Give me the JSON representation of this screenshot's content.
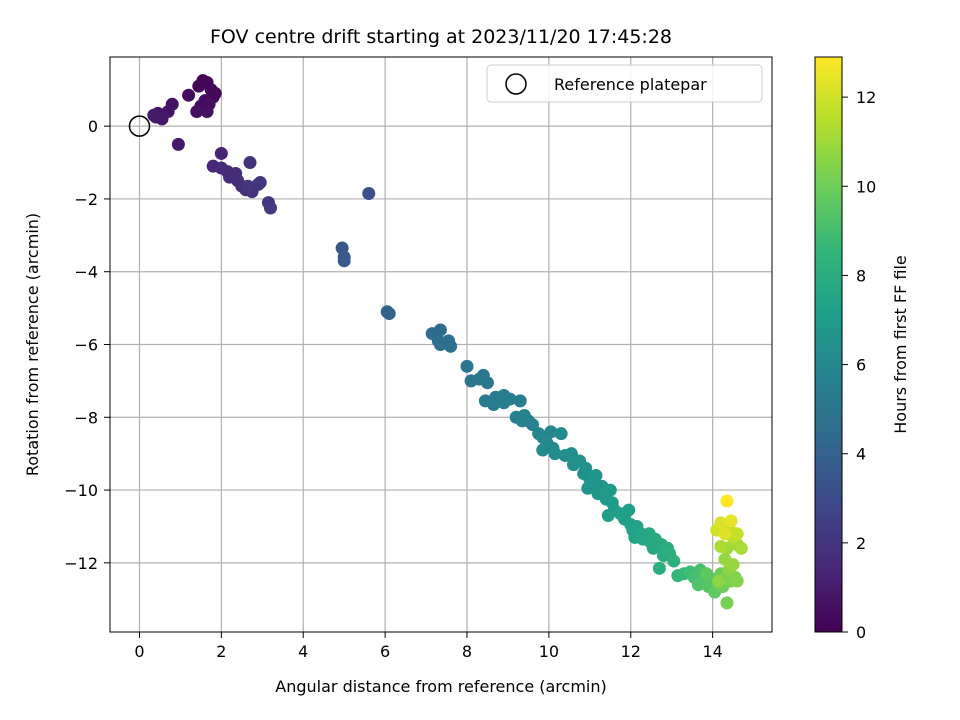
{
  "chart_data": {
    "type": "scatter",
    "title": "FOV centre drift starting at 2023/11/20 17:45:28",
    "xlabel": "Angular distance from reference (arcmin)",
    "ylabel": "Rotation from reference (arcmin)",
    "xlim": [
      -0.72,
      15.45
    ],
    "ylim": [
      -13.9,
      1.9
    ],
    "x_ticks": [
      0,
      2,
      4,
      6,
      8,
      10,
      12,
      14
    ],
    "y_ticks": [
      0,
      -2,
      -4,
      -6,
      -8,
      -10,
      -12
    ],
    "grid": true,
    "legend": {
      "position": "top-right",
      "entries": [
        "Reference platepar"
      ]
    },
    "reference_point": {
      "x": 0,
      "y": 0
    },
    "colorbar": {
      "label": "Hours from first FF file",
      "colormap": "viridis",
      "range": [
        0,
        12.9
      ],
      "ticks": [
        0,
        2,
        4,
        6,
        8,
        10,
        12
      ]
    },
    "colors": [
      "#440154",
      "#482878",
      "#3e4989",
      "#31688e",
      "#26828e",
      "#1f9e89",
      "#35b779",
      "#6ece58",
      "#b5de2b",
      "#fde725"
    ],
    "points": [
      [
        1.55,
        1.25,
        0.05
      ],
      [
        1.65,
        1.2,
        0.1
      ],
      [
        1.45,
        1.1,
        0.15
      ],
      [
        1.75,
        1.0,
        0.2
      ],
      [
        1.85,
        0.9,
        0.25
      ],
      [
        1.8,
        0.8,
        0.3
      ],
      [
        1.2,
        0.85,
        0.35
      ],
      [
        1.6,
        0.7,
        0.4
      ],
      [
        1.5,
        0.55,
        0.45
      ],
      [
        1.7,
        0.6,
        0.5
      ],
      [
        1.4,
        0.4,
        0.55
      ],
      [
        1.65,
        0.4,
        0.6
      ],
      [
        0.8,
        0.6,
        0.65
      ],
      [
        0.7,
        0.4,
        0.7
      ],
      [
        0.45,
        0.35,
        0.75
      ],
      [
        0.55,
        0.2,
        0.8
      ],
      [
        0.4,
        0.25,
        0.85
      ],
      [
        0.95,
        -0.5,
        0.9
      ],
      [
        0.35,
        0.3,
        0.95
      ],
      [
        2.0,
        -0.75,
        1.3
      ],
      [
        1.8,
        -1.1,
        1.4
      ],
      [
        2.0,
        -1.15,
        1.5
      ],
      [
        2.15,
        -1.25,
        1.55
      ],
      [
        2.35,
        -1.3,
        1.6
      ],
      [
        2.2,
        -1.4,
        1.65
      ],
      [
        2.4,
        -1.5,
        1.7
      ],
      [
        2.5,
        -1.65,
        1.75
      ],
      [
        2.6,
        -1.75,
        1.8
      ],
      [
        2.7,
        -1.0,
        1.85
      ],
      [
        2.75,
        -1.8,
        1.9
      ],
      [
        2.9,
        -1.6,
        1.95
      ],
      [
        2.95,
        -1.55,
        2.0
      ],
      [
        2.65,
        -1.65,
        2.05
      ],
      [
        3.15,
        -2.1,
        2.1
      ],
      [
        3.2,
        -2.25,
        2.2
      ],
      [
        5.6,
        -1.85,
        3.2
      ],
      [
        4.95,
        -3.35,
        3.5
      ],
      [
        5.0,
        -3.6,
        3.55
      ],
      [
        5.0,
        -3.7,
        3.6
      ],
      [
        6.05,
        -5.1,
        4.0
      ],
      [
        6.1,
        -5.15,
        4.05
      ],
      [
        7.15,
        -5.7,
        4.5
      ],
      [
        7.35,
        -5.6,
        4.55
      ],
      [
        7.3,
        -5.9,
        4.6
      ],
      [
        7.5,
        -5.95,
        4.65
      ],
      [
        7.35,
        -6.0,
        4.7
      ],
      [
        7.6,
        -6.05,
        4.75
      ],
      [
        7.55,
        -5.9,
        4.8
      ],
      [
        8.0,
        -6.6,
        5.0
      ],
      [
        8.1,
        -7.0,
        5.05
      ],
      [
        8.3,
        -6.95,
        5.1
      ],
      [
        8.4,
        -6.85,
        5.15
      ],
      [
        8.5,
        -7.05,
        5.2
      ],
      [
        8.45,
        -7.55,
        5.25
      ],
      [
        8.7,
        -7.45,
        5.3
      ],
      [
        8.65,
        -7.65,
        5.35
      ],
      [
        8.9,
        -7.4,
        5.4
      ],
      [
        8.9,
        -7.6,
        5.45
      ],
      [
        9.05,
        -7.5,
        5.5
      ],
      [
        9.3,
        -7.55,
        5.55
      ],
      [
        9.2,
        -8.0,
        5.6
      ],
      [
        9.4,
        -7.95,
        5.65
      ],
      [
        9.5,
        -8.1,
        5.7
      ],
      [
        9.6,
        -8.2,
        5.75
      ],
      [
        9.35,
        -8.1,
        5.8
      ],
      [
        9.75,
        -8.45,
        5.9
      ],
      [
        9.85,
        -8.55,
        5.95
      ],
      [
        10.05,
        -8.4,
        6.0
      ],
      [
        9.95,
        -8.7,
        6.05
      ],
      [
        10.1,
        -8.85,
        6.1
      ],
      [
        10.3,
        -8.45,
        6.15
      ],
      [
        9.85,
        -8.9,
        6.2
      ],
      [
        10.15,
        -9.0,
        6.25
      ],
      [
        10.4,
        -9.05,
        6.3
      ],
      [
        10.55,
        -9.0,
        6.35
      ],
      [
        10.6,
        -9.3,
        6.4
      ],
      [
        10.75,
        -9.2,
        6.45
      ],
      [
        10.85,
        -9.55,
        6.5
      ],
      [
        10.9,
        -9.4,
        6.55
      ],
      [
        11.0,
        -9.7,
        6.6
      ],
      [
        11.1,
        -9.85,
        6.65
      ],
      [
        10.95,
        -9.95,
        6.7
      ],
      [
        11.15,
        -9.6,
        6.75
      ],
      [
        11.3,
        -9.9,
        6.8
      ],
      [
        11.2,
        -10.1,
        6.85
      ],
      [
        11.4,
        -10.25,
        6.9
      ],
      [
        11.5,
        -10.0,
        6.95
      ],
      [
        11.55,
        -10.35,
        7.0
      ],
      [
        11.6,
        -10.55,
        7.05
      ],
      [
        11.45,
        -10.7,
        7.1
      ],
      [
        11.75,
        -10.65,
        7.2
      ],
      [
        11.85,
        -10.8,
        7.25
      ],
      [
        11.95,
        -10.55,
        7.3
      ],
      [
        12.0,
        -10.95,
        7.35
      ],
      [
        12.05,
        -11.1,
        7.4
      ],
      [
        12.15,
        -11.0,
        7.45
      ],
      [
        12.1,
        -11.3,
        7.5
      ],
      [
        12.25,
        -11.2,
        7.55
      ],
      [
        12.3,
        -11.35,
        7.6
      ],
      [
        12.45,
        -11.2,
        7.65
      ],
      [
        12.5,
        -11.45,
        7.7
      ],
      [
        12.55,
        -11.6,
        7.75
      ],
      [
        12.6,
        -11.35,
        7.8
      ],
      [
        12.75,
        -11.5,
        7.85
      ],
      [
        12.8,
        -11.8,
        7.9
      ],
      [
        12.9,
        -11.6,
        7.95
      ],
      [
        12.7,
        -12.15,
        8.0
      ],
      [
        12.95,
        -11.75,
        8.1
      ],
      [
        13.05,
        -11.95,
        8.2
      ],
      [
        13.15,
        -12.35,
        8.4
      ],
      [
        13.3,
        -12.3,
        8.6
      ],
      [
        13.45,
        -12.25,
        8.8
      ],
      [
        13.55,
        -12.4,
        9.0
      ],
      [
        13.7,
        -12.2,
        9.1
      ],
      [
        13.8,
        -12.5,
        9.2
      ],
      [
        13.65,
        -12.6,
        9.3
      ],
      [
        13.9,
        -12.65,
        9.4
      ],
      [
        14.0,
        -12.45,
        9.5
      ],
      [
        13.85,
        -12.3,
        9.6
      ],
      [
        14.05,
        -12.8,
        9.7
      ],
      [
        14.15,
        -12.55,
        9.8
      ],
      [
        14.2,
        -12.3,
        9.9
      ],
      [
        14.25,
        -12.65,
        10.0
      ],
      [
        14.3,
        -12.4,
        10.1
      ],
      [
        14.35,
        -13.1,
        10.2
      ],
      [
        14.45,
        -12.5,
        10.3
      ],
      [
        14.55,
        -12.4,
        10.4
      ],
      [
        14.6,
        -12.5,
        10.5
      ],
      [
        14.4,
        -12.2,
        10.6
      ],
      [
        14.15,
        -12.5,
        10.7
      ],
      [
        14.3,
        -11.9,
        10.8
      ],
      [
        14.5,
        -12.05,
        10.9
      ],
      [
        14.35,
        -11.6,
        11.0
      ],
      [
        14.6,
        -11.5,
        11.1
      ],
      [
        14.7,
        -11.6,
        11.2
      ],
      [
        14.2,
        -11.55,
        11.3
      ],
      [
        14.5,
        -11.3,
        11.5
      ],
      [
        14.4,
        -11.05,
        11.7
      ],
      [
        14.6,
        -11.2,
        11.8
      ],
      [
        14.1,
        -11.1,
        12.0
      ],
      [
        14.2,
        -10.9,
        12.2
      ],
      [
        14.3,
        -11.2,
        12.3
      ],
      [
        14.45,
        -10.85,
        12.5
      ],
      [
        14.35,
        -10.3,
        12.9
      ]
    ]
  }
}
